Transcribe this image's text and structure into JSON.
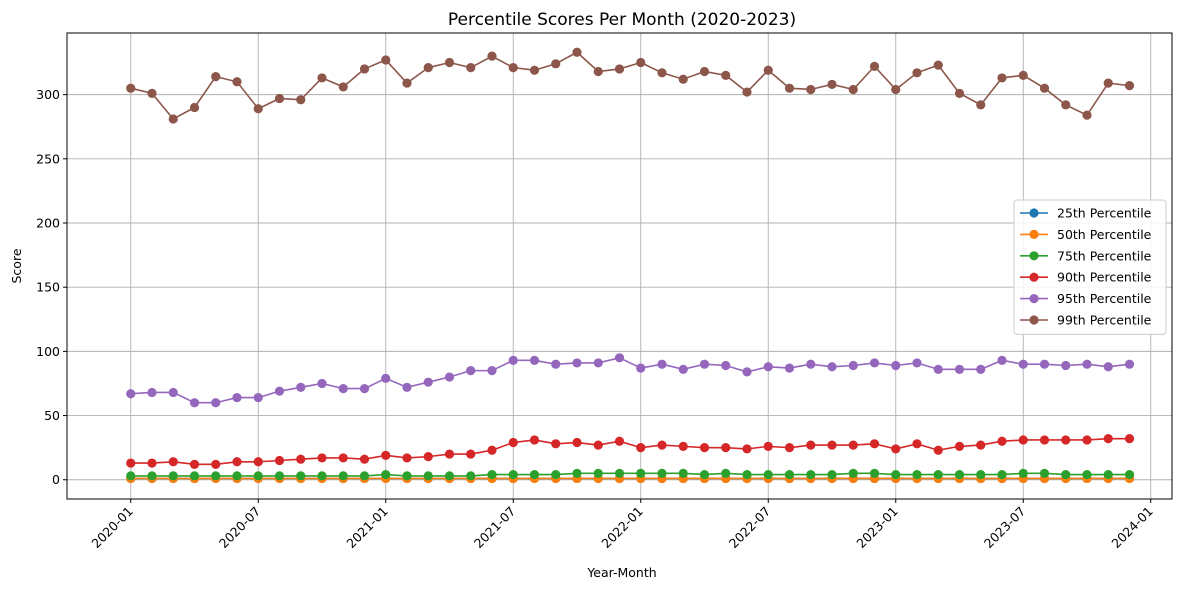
{
  "chart_data": {
    "type": "line",
    "title": "Percentile Scores Per Month (2020-2023)",
    "xlabel": "Year-Month",
    "ylabel": "Score",
    "x_start": "2020-01",
    "x_range": [
      "2019-10",
      "2024-02"
    ],
    "x_ticks": [
      "2020-01",
      "2020-07",
      "2021-01",
      "2021-07",
      "2022-01",
      "2022-07",
      "2023-01",
      "2023-07",
      "2024-01"
    ],
    "ylim": [
      -15,
      348
    ],
    "y_ticks": [
      0,
      50,
      100,
      150,
      200,
      250,
      300
    ],
    "grid": true,
    "legend_position": "center-right",
    "series": [
      {
        "name": "25th Percentile",
        "color": "#1f77b4",
        "values": [
          1,
          1,
          1,
          1,
          1,
          1,
          1,
          1,
          1,
          1,
          1,
          1,
          1,
          1,
          1,
          1,
          1,
          1,
          1,
          1,
          1,
          1,
          1,
          1,
          1,
          1,
          1,
          1,
          1,
          1,
          1,
          1,
          1,
          1,
          1,
          1,
          1,
          1,
          1,
          1,
          1,
          1,
          1,
          1,
          1,
          1,
          1,
          1
        ]
      },
      {
        "name": "50th Percentile",
        "color": "#ff7f0e",
        "values": [
          1,
          1,
          1,
          1,
          1,
          1,
          1,
          1,
          1,
          1,
          1,
          1,
          1,
          1,
          1,
          1,
          1,
          1,
          1,
          1,
          1,
          1,
          1,
          1,
          1,
          1,
          1,
          1,
          1,
          1,
          1,
          1,
          1,
          1,
          1,
          1,
          1,
          1,
          1,
          1,
          1,
          1,
          1,
          1,
          1,
          1,
          1,
          1
        ]
      },
      {
        "name": "75th Percentile",
        "color": "#2ca02c",
        "values": [
          3,
          3,
          3,
          3,
          3,
          3,
          3,
          3,
          3,
          3,
          3,
          3,
          4,
          3,
          3,
          3,
          3,
          4,
          4,
          4,
          4,
          5,
          5,
          5,
          5,
          5,
          5,
          4,
          5,
          4,
          4,
          4,
          4,
          4,
          5,
          5,
          4,
          4,
          4,
          4,
          4,
          4,
          5,
          5,
          4,
          4,
          4,
          4
        ]
      },
      {
        "name": "90th Percentile",
        "color": "#d62728",
        "values": [
          13,
          13,
          14,
          12,
          12,
          14,
          14,
          15,
          16,
          17,
          17,
          16,
          19,
          17,
          18,
          20,
          20,
          23,
          29,
          31,
          28,
          29,
          27,
          30,
          25,
          27,
          26,
          25,
          25,
          24,
          26,
          25,
          27,
          27,
          27,
          28,
          24,
          28,
          23,
          26,
          27,
          30,
          31,
          31,
          31,
          31,
          32,
          32
        ]
      },
      {
        "name": "95th Percentile",
        "color": "#9467bd",
        "values": [
          67,
          68,
          68,
          60,
          60,
          64,
          64,
          69,
          72,
          75,
          71,
          71,
          79,
          72,
          76,
          80,
          85,
          85,
          93,
          93,
          90,
          91,
          91,
          95,
          87,
          90,
          86,
          90,
          89,
          84,
          88,
          87,
          90,
          88,
          89,
          91,
          89,
          91,
          86,
          86,
          86,
          93,
          90,
          90,
          89,
          90,
          88,
          90
        ]
      },
      {
        "name": "99th Percentile",
        "color": "#8c564b",
        "values": [
          305,
          301,
          281,
          290,
          314,
          310,
          289,
          297,
          296,
          313,
          306,
          320,
          327,
          309,
          321,
          325,
          321,
          330,
          321,
          319,
          324,
          333,
          318,
          320,
          325,
          317,
          312,
          318,
          315,
          302,
          319,
          305,
          304,
          308,
          304,
          322,
          304,
          317,
          323,
          301,
          292,
          313,
          315,
          305,
          292,
          284,
          309,
          307
        ]
      }
    ]
  }
}
